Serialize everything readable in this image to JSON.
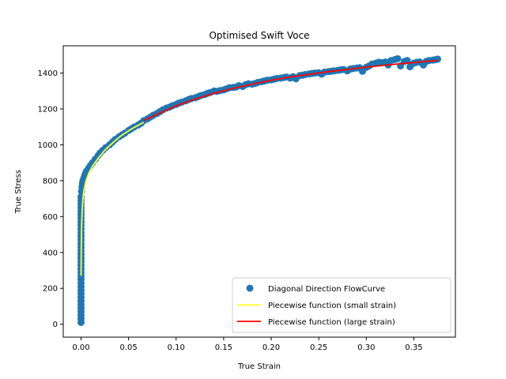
{
  "chart_data": {
    "type": "scatter",
    "title": "Optimised Swift Voce",
    "xlabel": "True Strain",
    "ylabel": "True Stress",
    "xlim": [
      -0.0187,
      0.3937
    ],
    "ylim": [
      -72,
      1552
    ],
    "xticks": [
      0.0,
      0.05,
      0.1,
      0.15,
      0.2,
      0.25,
      0.3,
      0.35
    ],
    "xtick_labels": [
      "0.00",
      "0.05",
      "0.10",
      "0.15",
      "0.20",
      "0.25",
      "0.30",
      "0.35"
    ],
    "yticks": [
      0,
      200,
      400,
      600,
      800,
      1000,
      1200,
      1400
    ],
    "ytick_labels": [
      "0",
      "200",
      "400",
      "600",
      "800",
      "1000",
      "1200",
      "1400"
    ],
    "grid": false,
    "legend_position": "lower-right",
    "series": [
      {
        "name": "Diagonal Direction FlowCurve",
        "kind": "scatter",
        "color": "#1f77b4",
        "x": [
          0.0,
          0.0,
          0.0,
          0.0,
          0.0,
          0.0,
          0.0,
          0.0,
          0.0,
          0.0,
          0.0,
          0.0,
          0.0,
          0.0,
          0.0,
          0.0,
          0.0,
          0.0,
          0.0,
          0.0,
          0.0,
          0.0,
          0.0,
          0.0,
          0.0,
          0.0,
          0.0,
          0.0,
          0.0,
          0.0,
          0.0,
          0.0,
          0.0,
          0.0,
          0.0,
          0.0,
          0.0005,
          0.001,
          0.0015,
          0.002,
          0.003,
          0.004,
          0.005,
          0.006,
          0.008,
          0.01,
          0.012,
          0.015,
          0.018,
          0.02,
          0.023,
          0.026,
          0.03,
          0.033,
          0.036,
          0.04,
          0.043,
          0.046,
          0.05,
          0.053,
          0.056,
          0.06,
          0.063,
          0.066,
          0.07,
          0.073,
          0.076,
          0.08,
          0.083,
          0.086,
          0.09,
          0.093,
          0.096,
          0.1,
          0.103,
          0.106,
          0.11,
          0.113,
          0.116,
          0.12,
          0.123,
          0.126,
          0.13,
          0.133,
          0.136,
          0.14,
          0.143,
          0.146,
          0.15,
          0.153,
          0.156,
          0.16,
          0.163,
          0.166,
          0.17,
          0.173,
          0.176,
          0.18,
          0.183,
          0.186,
          0.19,
          0.193,
          0.196,
          0.2,
          0.203,
          0.206,
          0.21,
          0.213,
          0.216,
          0.22,
          0.223,
          0.226,
          0.23,
          0.233,
          0.236,
          0.24,
          0.243,
          0.246,
          0.25,
          0.253,
          0.256,
          0.26,
          0.263,
          0.266,
          0.27,
          0.273,
          0.276,
          0.28,
          0.283,
          0.286,
          0.29,
          0.293,
          0.296,
          0.3,
          0.303,
          0.306,
          0.31,
          0.313,
          0.316,
          0.32,
          0.323,
          0.326,
          0.33,
          0.333,
          0.336,
          0.34,
          0.343,
          0.346,
          0.35,
          0.353,
          0.356,
          0.36,
          0.363,
          0.366,
          0.37,
          0.373,
          0.375
        ],
        "y": [
          10,
          30,
          50,
          70,
          90,
          110,
          130,
          150,
          170,
          190,
          210,
          230,
          250,
          270,
          290,
          310,
          330,
          350,
          370,
          390,
          410,
          430,
          450,
          470,
          490,
          510,
          530,
          550,
          570,
          590,
          610,
          630,
          650,
          670,
          690,
          710,
          740,
          765,
          785,
          800,
          815,
          830,
          845,
          855,
          870,
          885,
          900,
          920,
          940,
          955,
          970,
          985,
          1000,
          1015,
          1030,
          1045,
          1055,
          1065,
          1080,
          1090,
          1100,
          1110,
          1120,
          1135,
          1145,
          1155,
          1165,
          1175,
          1185,
          1195,
          1205,
          1210,
          1218,
          1225,
          1233,
          1238,
          1245,
          1252,
          1258,
          1262,
          1268,
          1275,
          1280,
          1287,
          1292,
          1300,
          1298,
          1302,
          1306,
          1312,
          1318,
          1320,
          1322,
          1330,
          1325,
          1335,
          1340,
          1338,
          1342,
          1348,
          1352,
          1356,
          1360,
          1362,
          1366,
          1370,
          1372,
          1375,
          1378,
          1372,
          1380,
          1368,
          1386,
          1388,
          1392,
          1395,
          1398,
          1400,
          1402,
          1394,
          1405,
          1408,
          1410,
          1412,
          1415,
          1418,
          1420,
          1412,
          1422,
          1425,
          1428,
          1430,
          1410,
          1432,
          1440,
          1450,
          1455,
          1460,
          1458,
          1462,
          1445,
          1470,
          1475,
          1480,
          1440,
          1465,
          1470,
          1435,
          1455,
          1460,
          1462,
          1445,
          1465,
          1470,
          1472,
          1475,
          1478
        ]
      },
      {
        "name": "Piecewise function (small strain)",
        "kind": "line",
        "color": "#ffff33",
        "x": [
          0.0,
          0.0003,
          0.0007,
          0.0012,
          0.002,
          0.003,
          0.005,
          0.008,
          0.012,
          0.018,
          0.025,
          0.033,
          0.042,
          0.052,
          0.062,
          0.066
        ],
        "y": [
          270,
          450,
          560,
          630,
          700,
          745,
          795,
          840,
          880,
          925,
          970,
          1010,
          1050,
          1085,
          1115,
          1125
        ]
      },
      {
        "name": "Piecewise function (large strain)",
        "kind": "line",
        "color": "#ff0000",
        "x": [
          0.066,
          0.08,
          0.1,
          0.12,
          0.14,
          0.16,
          0.18,
          0.2,
          0.22,
          0.24,
          0.26,
          0.28,
          0.3,
          0.32,
          0.34,
          0.36,
          0.375
        ],
        "y": [
          1135,
          1170,
          1218,
          1255,
          1288,
          1315,
          1338,
          1360,
          1378,
          1393,
          1408,
          1420,
          1433,
          1444,
          1454,
          1464,
          1470
        ]
      }
    ]
  }
}
